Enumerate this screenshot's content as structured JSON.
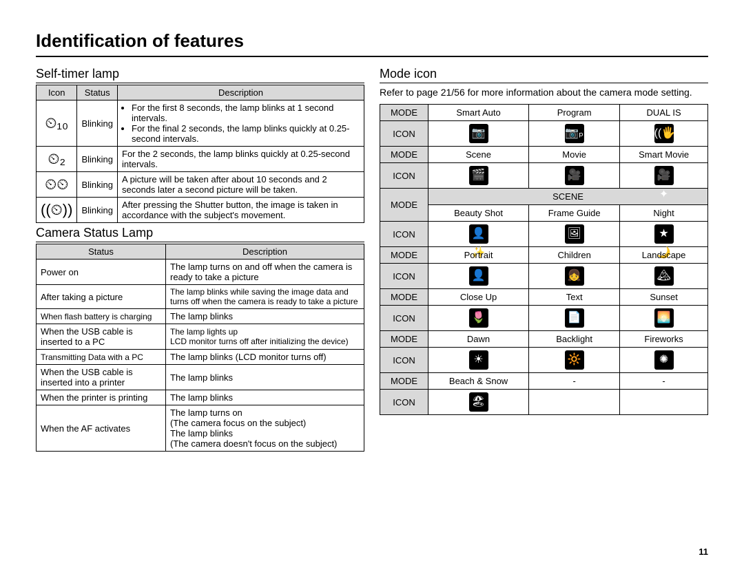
{
  "page_title": "Identification of features",
  "page_number": "11",
  "left": {
    "timer": {
      "title": "Self-timer lamp",
      "headers": [
        "Icon",
        "Status",
        "Description"
      ],
      "rows": [
        {
          "icon": "⏲₁₀",
          "status": "Blinking",
          "desc_items": [
            "For the first 8 seconds, the lamp blinks at 1 second intervals.",
            "For the final 2 seconds, the lamp blinks quickly at 0.25-second intervals."
          ]
        },
        {
          "icon": "⏲₂",
          "status": "Blinking",
          "desc": "For the 2 seconds, the lamp blinks quickly at 0.25-second intervals."
        },
        {
          "icon": "⏲⏲",
          "status": "Blinking",
          "desc": "A picture will be taken after about 10 seconds and 2 seconds later a second picture will be taken."
        },
        {
          "icon": "((⏲))",
          "status": "Blinking",
          "desc": "After pressing the Shutter button, the image is taken in accordance with the subject's movement."
        }
      ]
    },
    "status_lamp": {
      "title": "Camera Status Lamp",
      "headers": [
        "Status",
        "Description"
      ],
      "rows": [
        {
          "status": "Power on",
          "desc": "The lamp turns on and off when the camera is ready to take a picture"
        },
        {
          "status": "After taking a picture",
          "desc": "The lamp blinks while saving the image data and turns off when the camera is ready to take a picture",
          "desc_small": true
        },
        {
          "status": "When flash battery is charging",
          "status_small": true,
          "desc": "The lamp blinks"
        },
        {
          "status": "When the USB cable is inserted to a PC",
          "desc": "The lamp lights up\nLCD monitor turns off after initializing the device)",
          "desc_small": true
        },
        {
          "status": "Transmitting Data with a PC",
          "status_small": true,
          "desc": "The lamp blinks (LCD monitor turns off)"
        },
        {
          "status": "When the USB cable is inserted into a printer",
          "desc": "The lamp blinks"
        },
        {
          "status": "When the printer is printing",
          "desc": "The lamp blinks"
        },
        {
          "status": "When the AF activates",
          "desc": "The lamp turns on\n(The camera focus on the subject)\nThe lamp blinks\n(The camera doesn't focus on the subject)"
        }
      ]
    }
  },
  "right": {
    "title": "Mode icon",
    "intro": "Refer to page 21/56 for more information about the camera mode setting.",
    "label_mode": "MODE",
    "label_icon": "ICON",
    "label_scene": "SCENE",
    "row1_modes": [
      "Smart Auto",
      "Program",
      "DUAL IS"
    ],
    "row1_icons": [
      "📷",
      "📷ₚ",
      "((🖐))"
    ],
    "row2_modes": [
      "Scene",
      "Movie",
      "Smart Movie"
    ],
    "row2_icons": [
      "🎬",
      "🎥",
      "🎥✦"
    ],
    "scene_rows": [
      {
        "modes": [
          "Beauty Shot",
          "Frame Guide",
          "Night"
        ],
        "icons": [
          "👤✨",
          "🖼",
          "★🌙"
        ]
      },
      {
        "modes": [
          "Portrait",
          "Children",
          "Landscape"
        ],
        "icons": [
          "👤",
          "👧",
          "🏔"
        ]
      },
      {
        "modes": [
          "Close Up",
          "Text",
          "Sunset"
        ],
        "icons": [
          "🌷",
          "📄",
          "🌅"
        ]
      },
      {
        "modes": [
          "Dawn",
          "Backlight",
          "Fireworks"
        ],
        "icons": [
          "☀",
          "🔆",
          "✺"
        ]
      },
      {
        "modes": [
          "Beach & Snow",
          "-",
          "-"
        ],
        "icons": [
          "🏖",
          "",
          ""
        ]
      }
    ]
  }
}
